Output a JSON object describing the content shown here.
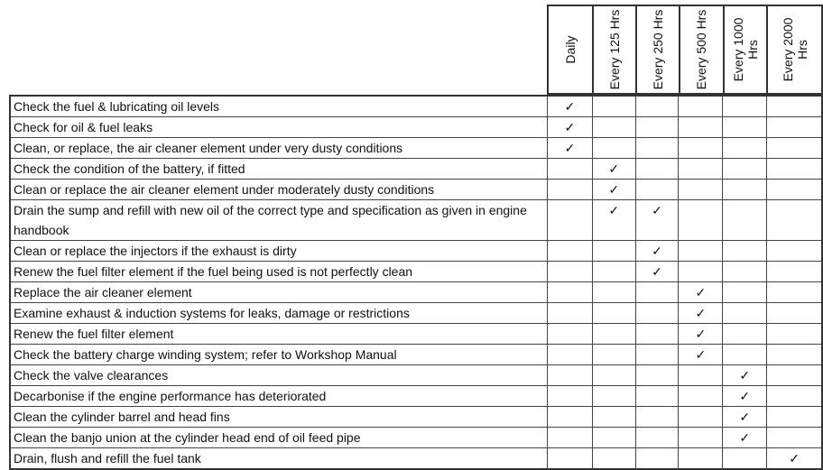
{
  "columns": [
    "Daily",
    "Every 125 Hrs",
    "Every 250 Hrs",
    "Every 500 Hrs",
    "Every 1000 Hrs",
    "Every 2000 Hrs"
  ],
  "check_mark": "✓",
  "rows": [
    {
      "task": "Check the fuel & lubricating oil levels",
      "checks": [
        1,
        0,
        0,
        0,
        0,
        0
      ]
    },
    {
      "task": "Check for oil & fuel leaks",
      "checks": [
        1,
        0,
        0,
        0,
        0,
        0
      ]
    },
    {
      "task": "Clean, or replace, the air cleaner element under  very dusty conditions",
      "checks": [
        1,
        0,
        0,
        0,
        0,
        0
      ]
    },
    {
      "task": "Check the condition of the battery, if fitted",
      "checks": [
        0,
        1,
        0,
        0,
        0,
        0
      ]
    },
    {
      "task": "Clean or replace the air cleaner element under  moderately dusty conditions",
      "checks": [
        0,
        1,
        0,
        0,
        0,
        0
      ]
    },
    {
      "task": "Drain the sump and refill with new oil of the correct  type and specification as given in engine handbook",
      "checks": [
        0,
        1,
        1,
        0,
        0,
        0
      ]
    },
    {
      "task": "Clean or replace the injectors if the exhaust is dirty",
      "checks": [
        0,
        0,
        1,
        0,
        0,
        0
      ]
    },
    {
      "task": "Renew the fuel filter element if the fuel being used  is not perfectly clean",
      "checks": [
        0,
        0,
        1,
        0,
        0,
        0
      ]
    },
    {
      "task": "Replace the air cleaner element",
      "checks": [
        0,
        0,
        0,
        1,
        0,
        0
      ]
    },
    {
      "task": "Examine exhaust & induction systems for leaks,  damage or restrictions",
      "checks": [
        0,
        0,
        0,
        1,
        0,
        0
      ]
    },
    {
      "task": "Renew the fuel filter element",
      "checks": [
        0,
        0,
        0,
        1,
        0,
        0
      ]
    },
    {
      "task": "Check the battery charge winding system; refer to  Workshop Manual",
      "checks": [
        0,
        0,
        0,
        1,
        0,
        0
      ]
    },
    {
      "task": "Check the valve clearances",
      "checks": [
        0,
        0,
        0,
        0,
        1,
        0
      ]
    },
    {
      "task": "Decarbonise if the engine performance has deteriorated",
      "checks": [
        0,
        0,
        0,
        0,
        1,
        0
      ]
    },
    {
      "task": "Clean the cylinder barrel and head fins",
      "checks": [
        0,
        0,
        0,
        0,
        1,
        0
      ]
    },
    {
      "task": "Clean the banjo union at the cylinder head end of  oil feed pipe",
      "checks": [
        0,
        0,
        0,
        0,
        1,
        0
      ]
    },
    {
      "task": "Drain, flush and refill the fuel tank",
      "checks": [
        0,
        0,
        0,
        0,
        0,
        1
      ]
    }
  ]
}
